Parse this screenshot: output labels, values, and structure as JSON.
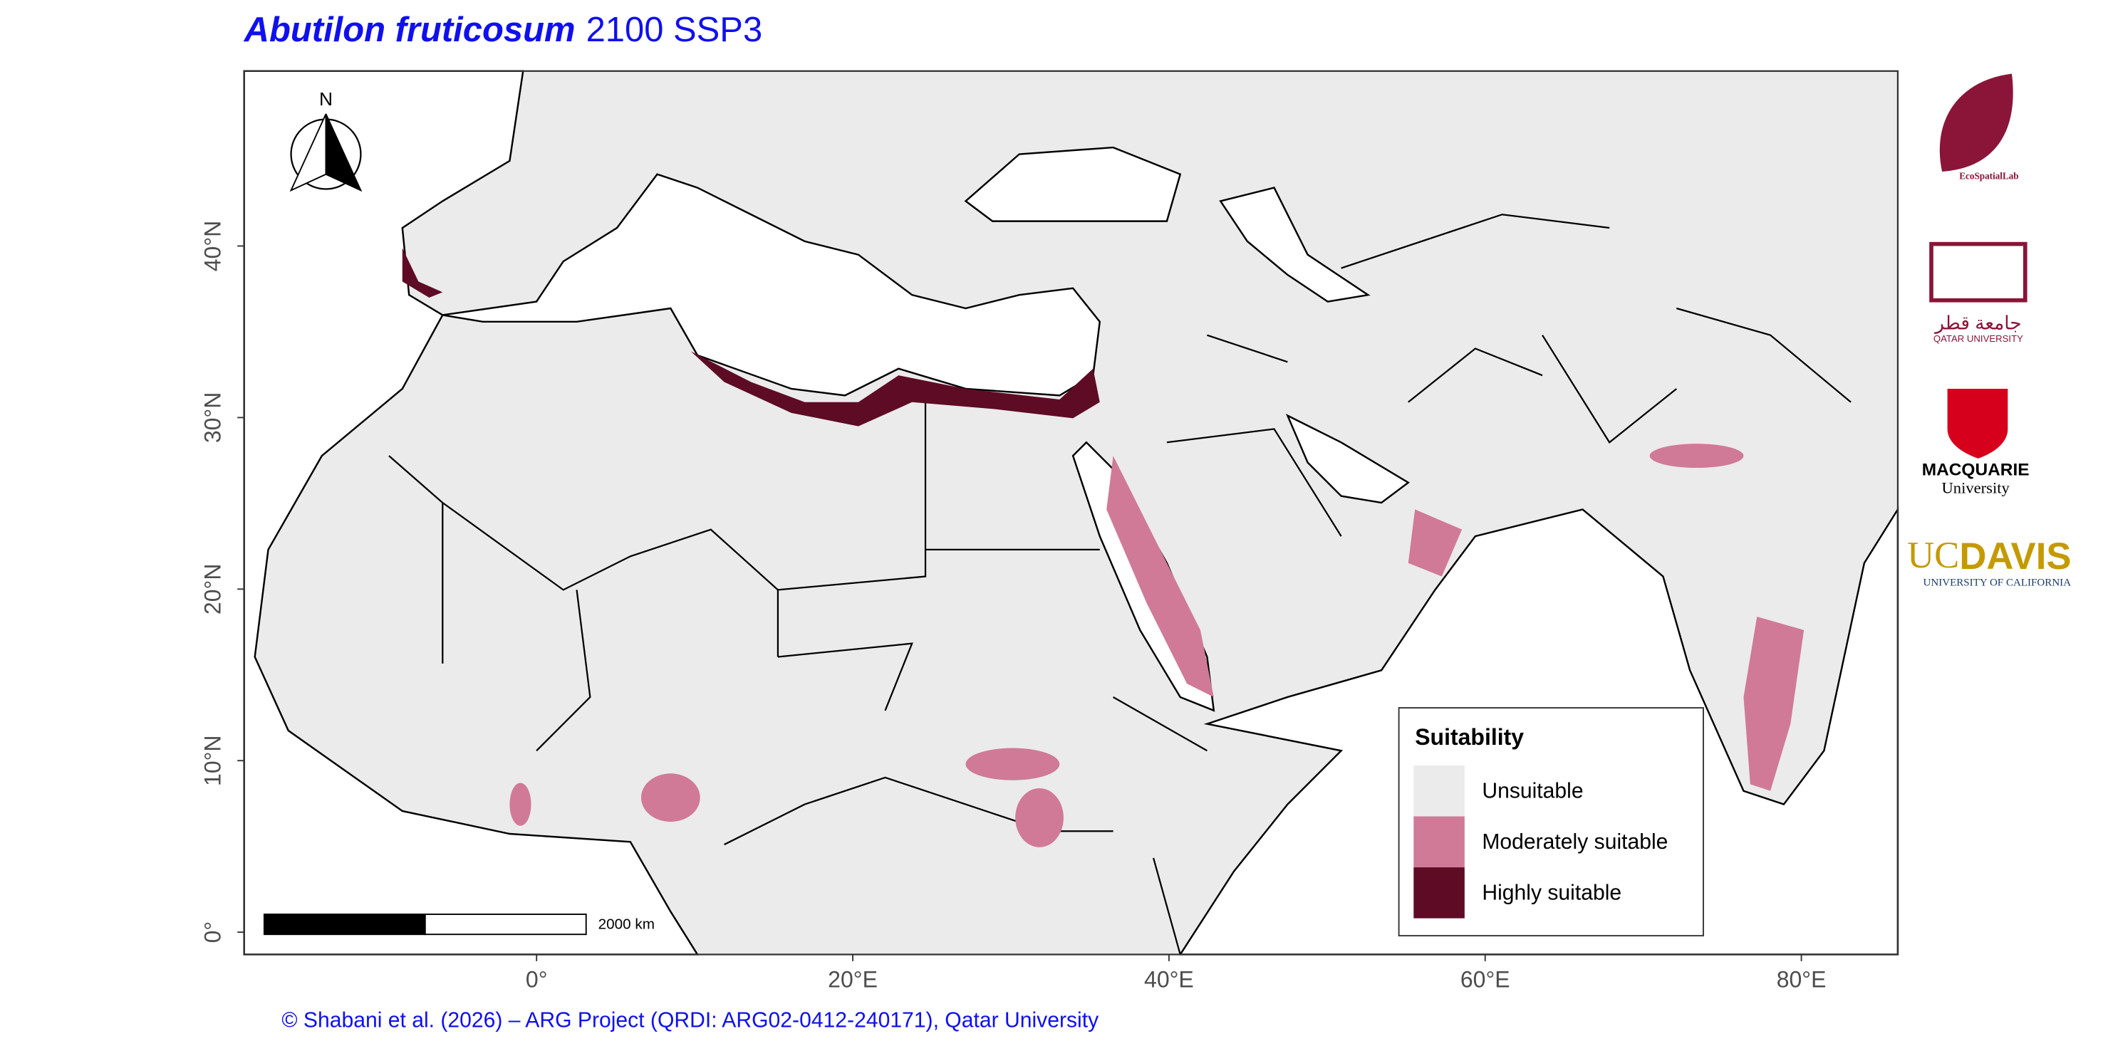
{
  "title": {
    "species": "Abutilon fruticosum",
    "scenario": "2100 SSP3"
  },
  "axes": {
    "xlim": [
      -18.5,
      86.1
    ],
    "ylim": [
      -1.3,
      50.2
    ],
    "xticks": [
      {
        "value": 0,
        "label": "0°"
      },
      {
        "value": 20,
        "label": "20°E"
      },
      {
        "value": 40,
        "label": "40°E"
      },
      {
        "value": 60,
        "label": "60°E"
      },
      {
        "value": 80,
        "label": "80°E"
      }
    ],
    "yticks": [
      {
        "value": 0,
        "label": "0°"
      },
      {
        "value": 10,
        "label": "10°N"
      },
      {
        "value": 20,
        "label": "20°N"
      },
      {
        "value": 30,
        "label": "30°N"
      },
      {
        "value": 40,
        "label": "40°N"
      }
    ]
  },
  "legend": {
    "title": "Suitability",
    "items": [
      {
        "label": "Unsuitable",
        "color": "#ebebeb"
      },
      {
        "label": "Moderately suitable",
        "color": "#d07a98"
      },
      {
        "label": "Highly suitable",
        "color": "#5e0b26"
      }
    ]
  },
  "scale_bar": {
    "label": "2000 km"
  },
  "north": "N",
  "footer": "© Shabani et al. (2026) – ARG Project (QRDI: ARG02-0412-240171), Qatar University",
  "logos": {
    "ecospatial": "EcoSpatialLab",
    "qatar_ar": "جامعة قطر",
    "qatar_en": "QATAR UNIVERSITY",
    "macquarie": "MACQUARIE",
    "macquarie_sub": "University",
    "ucd_uc": "UC",
    "ucd_davis": "DAVIS",
    "ucd_sub": "UNIVERSITY OF CALIFORNIA"
  }
}
